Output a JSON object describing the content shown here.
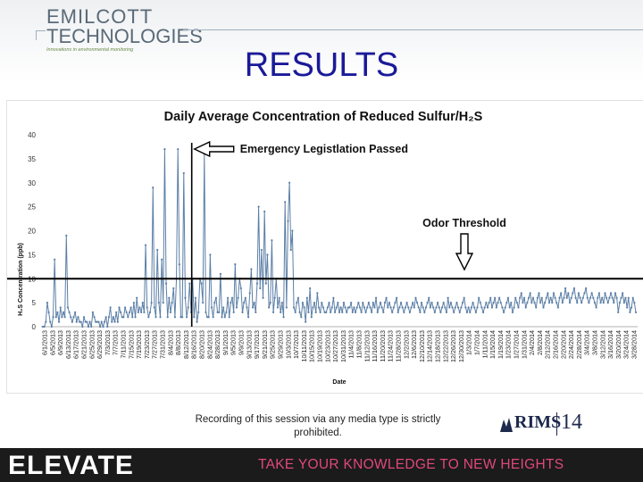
{
  "logo": {
    "line1": "EMILCOTT",
    "line2": "TECHNOLOGIES",
    "tagline": "Innovations in environmental monitoring"
  },
  "slide_title": "RESULTS",
  "footer_note": "Recording of this session via any media type is strictly prohibited.",
  "rims": {
    "name": "RIMS",
    "number": "14"
  },
  "bottom_bar": {
    "brand": "ELEVATE",
    "tagline": "TAKE YOUR KNOWLEDGE TO NEW HEIGHTS",
    "tagline_color": "#e0487a"
  },
  "chart_data": {
    "type": "line",
    "title": "Daily Average Concentration of Reduced Sulfur/H₂S",
    "xlabel": "Date",
    "ylabel": "H₂S Concentration (ppb)",
    "ylim": [
      0,
      40
    ],
    "yticks": [
      0,
      5,
      10,
      15,
      20,
      25,
      30,
      35,
      40
    ],
    "xtick_labels": [
      "6/1/2013",
      "6/5/2013",
      "6/9/2013",
      "6/13/2013",
      "6/17/2013",
      "6/21/2013",
      "6/25/2013",
      "6/29/2013",
      "7/3/2013",
      "7/7/2013",
      "7/11/2013",
      "7/15/2013",
      "7/19/2013",
      "7/23/2013",
      "7/27/2013",
      "7/31/2013",
      "8/4/2013",
      "8/8/2013",
      "8/12/2013",
      "8/16/2013",
      "8/20/2013",
      "8/24/2013",
      "8/28/2013",
      "9/1/2013",
      "9/5/2013",
      "9/9/2013",
      "9/13/2013",
      "9/17/2013",
      "9/21/2013",
      "9/25/2013",
      "9/29/2013",
      "10/3/2013",
      "10/7/2013",
      "10/11/2013",
      "10/15/2013",
      "10/19/2013",
      "10/23/2013",
      "10/27/2013",
      "10/31/2013",
      "11/4/2013",
      "11/8/2013",
      "11/12/2013",
      "11/16/2013",
      "11/20/2013",
      "11/24/2013",
      "11/28/2013",
      "12/2/2013",
      "12/6/2013",
      "12/10/2013",
      "12/14/2013",
      "12/18/2013",
      "12/22/2013",
      "12/26/2013",
      "12/30/2013",
      "1/3/2014",
      "1/7/2014",
      "1/11/2014",
      "1/15/2014",
      "1/19/2014",
      "1/23/2014",
      "1/27/2014",
      "1/31/2014",
      "2/4/2014",
      "2/8/2014",
      "2/12/2014",
      "2/16/2014",
      "2/20/2014",
      "2/24/2014",
      "2/28/2014",
      "3/4/2014",
      "3/8/2014",
      "3/12/2014",
      "3/16/2014",
      "3/20/2014",
      "3/24/2014",
      "3/28/2014"
    ],
    "series_color": "#5b7fa6",
    "series": [
      {
        "x_index_start": 0,
        "values": [
          0,
          0,
          1,
          5,
          3,
          1,
          0,
          2,
          14,
          2,
          3,
          1,
          4,
          2,
          3,
          2,
          19,
          4,
          3,
          2,
          1,
          2,
          3,
          1,
          2,
          1,
          1,
          0,
          2,
          1,
          1,
          0,
          1,
          0,
          3,
          2,
          1,
          1,
          1,
          0,
          1,
          0,
          1,
          2,
          0,
          2,
          4,
          1,
          2,
          1,
          3,
          1,
          4,
          3,
          2,
          2,
          4,
          3,
          2,
          3,
          4,
          2,
          5,
          2,
          6,
          3,
          4,
          3,
          5,
          3,
          17,
          4,
          2,
          3,
          5,
          29,
          4,
          2,
          16,
          5,
          2,
          14,
          5,
          37,
          9,
          2,
          6,
          3,
          5,
          8,
          2,
          10,
          37,
          13,
          2,
          2,
          32,
          6,
          2,
          4,
          9,
          3,
          10,
          2,
          6,
          1,
          3,
          10,
          9,
          5,
          36,
          3,
          2,
          2,
          15,
          4,
          2,
          5,
          6,
          3,
          3,
          11,
          2,
          4,
          2,
          3,
          6,
          2,
          5,
          6,
          3,
          13,
          4,
          6,
          10,
          8,
          3,
          5,
          6,
          4,
          2,
          7,
          12,
          4,
          5,
          3,
          9,
          25,
          8,
          16,
          6,
          24,
          9,
          15,
          4,
          5,
          18,
          3,
          6,
          10,
          4,
          6,
          3,
          5,
          2,
          26,
          4,
          22,
          30,
          16,
          20,
          4,
          3,
          5,
          6,
          3,
          2,
          5,
          4,
          1,
          6,
          3,
          8,
          2,
          4,
          5,
          3,
          7,
          4,
          3,
          5,
          4,
          3,
          3,
          4,
          5,
          3,
          4,
          6,
          3,
          4,
          5,
          3,
          4,
          3,
          5,
          4,
          3,
          4,
          4,
          5,
          3,
          4,
          3,
          4,
          5,
          4,
          3,
          5,
          4,
          3,
          4,
          5,
          4,
          3,
          5,
          4,
          6,
          3,
          4,
          5,
          4,
          3,
          5,
          6,
          4,
          5,
          4,
          3,
          4,
          5,
          6,
          3,
          4,
          5,
          4,
          3,
          4,
          5,
          4,
          3,
          4,
          5,
          4,
          6,
          5,
          4,
          3,
          5,
          4,
          3,
          4,
          5,
          6,
          4,
          5,
          4,
          3,
          4,
          5,
          4,
          3,
          4,
          5,
          4,
          3,
          6,
          4,
          5,
          4,
          3,
          4,
          5,
          4,
          3,
          4,
          5,
          6,
          4,
          3,
          4,
          3,
          4,
          5,
          4,
          3,
          4,
          6,
          5,
          4,
          3,
          4,
          5,
          4,
          5,
          6,
          4,
          5,
          6,
          4,
          5,
          6,
          5,
          4,
          3,
          4,
          5,
          6,
          4,
          5,
          3,
          4,
          6,
          5,
          4,
          6,
          7,
          5,
          6,
          4,
          5,
          6,
          7,
          5,
          6,
          5,
          4,
          6,
          7,
          5,
          6,
          4,
          5,
          6,
          7,
          5,
          6,
          5,
          7,
          6,
          5,
          4,
          6,
          7,
          5,
          6,
          8,
          6,
          7,
          5,
          6,
          7,
          8,
          6,
          5,
          7,
          6,
          5,
          6,
          7,
          8,
          6,
          5,
          6,
          7,
          6,
          5,
          4,
          6,
          7,
          5,
          6,
          5,
          7,
          6,
          5,
          6,
          7,
          6,
          5,
          7,
          6,
          3,
          5,
          6,
          7,
          5,
          6,
          4,
          6,
          3,
          4,
          6,
          5,
          3
        ]
      }
    ],
    "annotations": [
      {
        "text": "Emergency Legistlation Passed",
        "x_date": "8/14/2013"
      },
      {
        "text": "Odor Threshold",
        "y": 10
      }
    ]
  }
}
